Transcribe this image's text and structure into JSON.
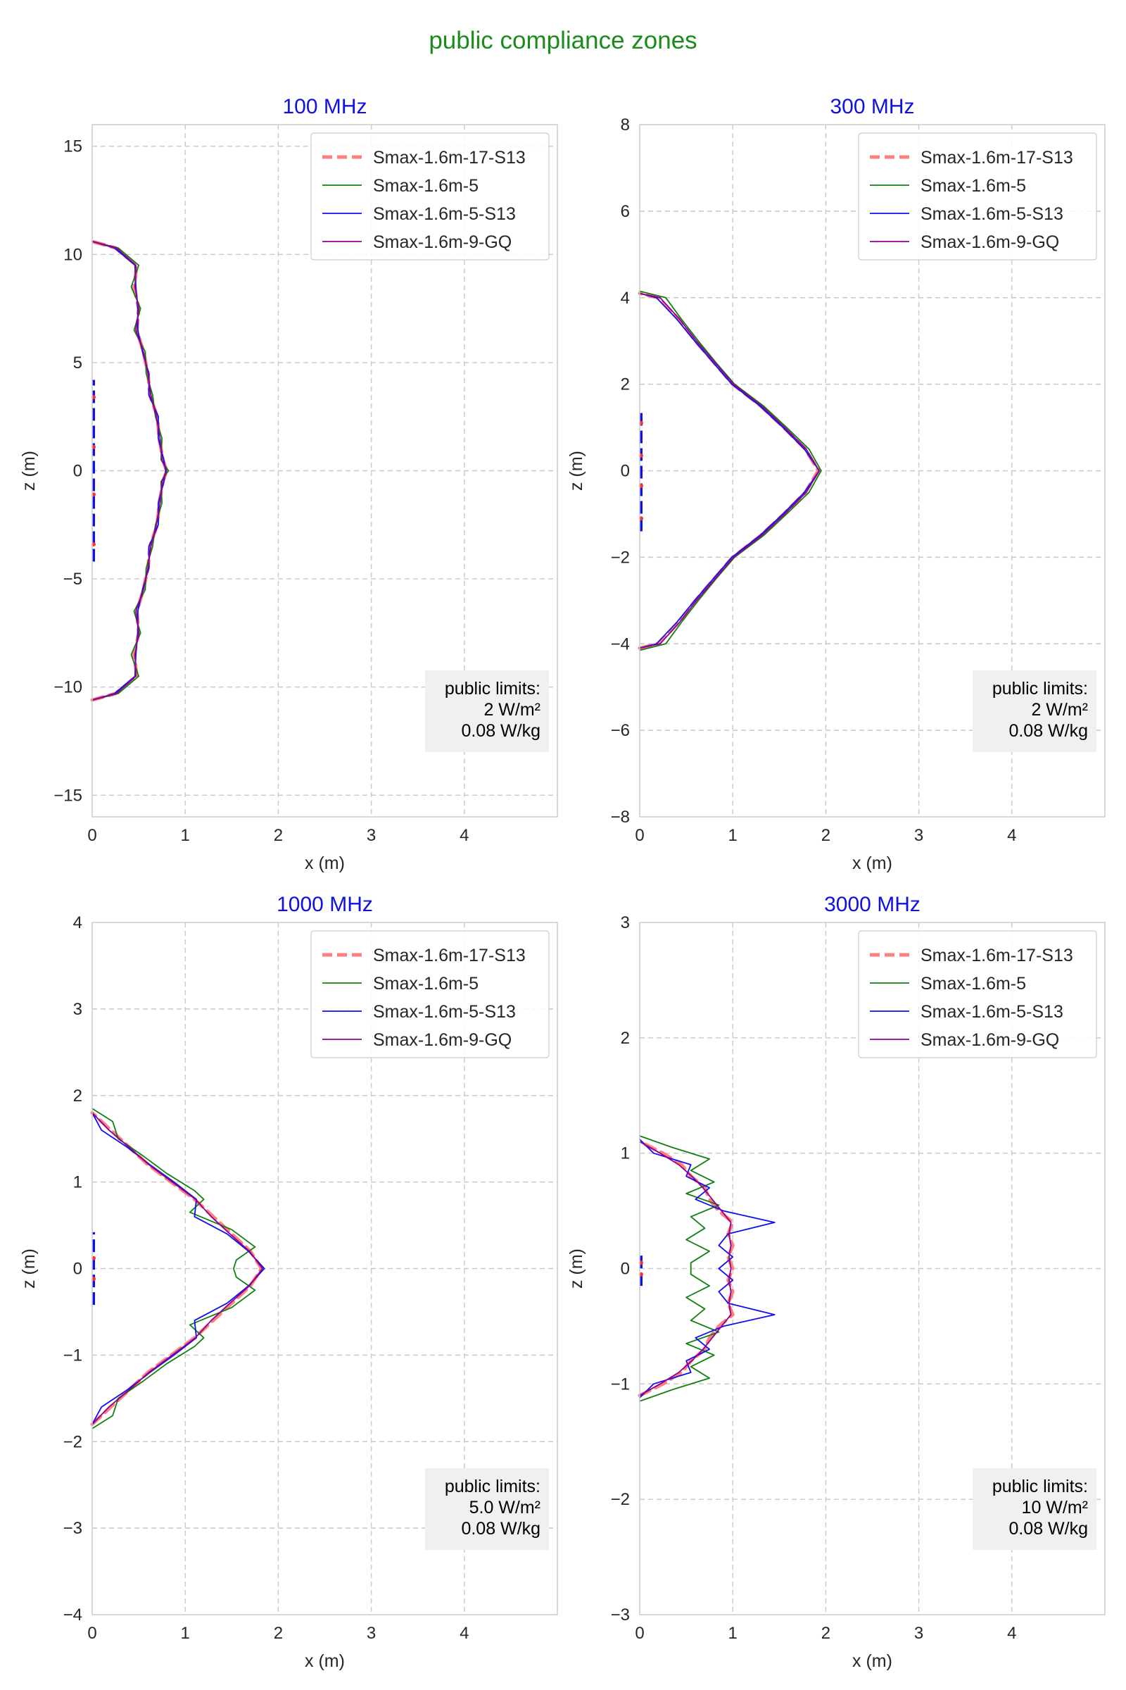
{
  "figure_title": "public compliance zones",
  "colors": {
    "title": "#1a8c1a",
    "panel_title": "#1010e0",
    "Smax-1.6m-17-S13": "#ff7777",
    "Smax-1.6m-5": "#108010",
    "Smax-1.6m-5-S13": "#1010ee",
    "Smax-1.6m-9-GQ": "#900090",
    "antenna": "#1010ee",
    "antenna_feed": "#ff3030"
  },
  "chart_data": [
    {
      "type": "line",
      "title": "100 MHz",
      "xlabel": "x (m)",
      "ylabel": "z (m)",
      "xlim": [
        0,
        5
      ],
      "ylim": [
        -16,
        16
      ],
      "xticks": [
        0,
        1,
        2,
        3,
        4
      ],
      "yticks": [
        -15,
        -10,
        -5,
        0,
        5,
        10,
        15
      ],
      "grid": true,
      "legend_position": "upper-right",
      "legend": [
        "Smax-1.6m-17-S13",
        "Smax-1.6m-5",
        "Smax-1.6m-5-S13",
        "Smax-1.6m-9-GQ"
      ],
      "limits_box": {
        "position": "lower-right",
        "lines": [
          "public limits:",
          "2 W/m²",
          "0.08 W/kg"
        ]
      },
      "antenna": {
        "z_range": [
          -4.2,
          4.2
        ],
        "feed_z": [
          -3.4,
          -1.1,
          1.1,
          3.4
        ]
      },
      "series": [
        {
          "name": "Smax-1.6m-17-S13",
          "style": "dashed",
          "z": [
            -10.6,
            -10.3,
            -9.5,
            -8.5,
            -7.5,
            -6.5,
            -5.5,
            -4.5,
            -3.5,
            -2.5,
            -1.5,
            -0.5,
            0,
            0.5,
            1.5,
            2.5,
            3.5,
            4.5,
            5.5,
            6.5,
            7.5,
            8.5,
            9.5,
            10.3,
            10.6
          ],
          "x": [
            0.0,
            0.25,
            0.48,
            0.45,
            0.5,
            0.48,
            0.55,
            0.6,
            0.62,
            0.7,
            0.72,
            0.76,
            0.8,
            0.76,
            0.72,
            0.7,
            0.62,
            0.6,
            0.55,
            0.48,
            0.5,
            0.45,
            0.48,
            0.25,
            0.0
          ]
        },
        {
          "name": "Smax-1.6m-5",
          "style": "solid",
          "z": [
            -10.6,
            -10.3,
            -9.5,
            -8.5,
            -7.5,
            -6.5,
            -5.5,
            -4.5,
            -3.5,
            -2.5,
            -1.5,
            -0.5,
            0,
            0.5,
            1.5,
            2.5,
            3.5,
            4.5,
            5.5,
            6.5,
            7.5,
            8.5,
            9.5,
            10.3,
            10.6
          ],
          "x": [
            0.0,
            0.28,
            0.5,
            0.42,
            0.52,
            0.45,
            0.57,
            0.58,
            0.65,
            0.68,
            0.75,
            0.74,
            0.82,
            0.74,
            0.75,
            0.68,
            0.65,
            0.58,
            0.57,
            0.45,
            0.52,
            0.42,
            0.5,
            0.28,
            0.0
          ]
        },
        {
          "name": "Smax-1.6m-5-S13",
          "style": "solid",
          "z": [
            -10.6,
            -10.3,
            -9.5,
            -8.5,
            -7.5,
            -6.5,
            -5.5,
            -4.5,
            -3.5,
            -2.5,
            -1.5,
            -0.5,
            0,
            0.5,
            1.5,
            2.5,
            3.5,
            4.5,
            5.5,
            6.5,
            7.5,
            8.5,
            9.5,
            10.3,
            10.6
          ],
          "x": [
            0.0,
            0.24,
            0.46,
            0.47,
            0.49,
            0.49,
            0.54,
            0.61,
            0.61,
            0.71,
            0.71,
            0.77,
            0.79,
            0.77,
            0.71,
            0.71,
            0.61,
            0.61,
            0.54,
            0.49,
            0.49,
            0.47,
            0.46,
            0.24,
            0.0
          ]
        },
        {
          "name": "Smax-1.6m-9-GQ",
          "style": "solid",
          "z": [
            -10.6,
            -10.3,
            -9.5,
            -8.5,
            -7.5,
            -6.5,
            -5.5,
            -4.5,
            -3.5,
            -2.5,
            -1.5,
            -0.5,
            0,
            0.5,
            1.5,
            2.5,
            3.5,
            4.5,
            5.5,
            6.5,
            7.5,
            8.5,
            9.5,
            10.3,
            10.6
          ],
          "x": [
            0.0,
            0.26,
            0.47,
            0.46,
            0.5,
            0.47,
            0.55,
            0.6,
            0.63,
            0.69,
            0.73,
            0.75,
            0.8,
            0.75,
            0.73,
            0.69,
            0.63,
            0.6,
            0.55,
            0.47,
            0.5,
            0.46,
            0.47,
            0.26,
            0.0
          ]
        }
      ]
    },
    {
      "type": "line",
      "title": "300 MHz",
      "xlabel": "x (m)",
      "ylabel": "z (m)",
      "xlim": [
        0,
        5
      ],
      "ylim": [
        -8,
        8
      ],
      "xticks": [
        0,
        1,
        2,
        3,
        4
      ],
      "yticks": [
        -8,
        -6,
        -4,
        -2,
        0,
        2,
        4,
        6,
        8
      ],
      "grid": true,
      "legend_position": "upper-right",
      "legend": [
        "Smax-1.6m-17-S13",
        "Smax-1.6m-5",
        "Smax-1.6m-5-S13",
        "Smax-1.6m-9-GQ"
      ],
      "limits_box": {
        "position": "lower-right",
        "lines": [
          "public limits:",
          "2 W/m²",
          "0.08 W/kg"
        ]
      },
      "antenna": {
        "z_range": [
          -1.4,
          1.4
        ],
        "feed_z": [
          -1.1,
          -0.35,
          0.35,
          1.1
        ]
      },
      "series": [
        {
          "name": "Smax-1.6m-17-S13",
          "style": "dashed",
          "z": [
            -4.1,
            -4.0,
            -3.5,
            -3.0,
            -2.5,
            -2.0,
            -1.5,
            -1.0,
            -0.5,
            0,
            0.5,
            1.0,
            1.5,
            2.0,
            2.5,
            3.0,
            3.5,
            4.0,
            4.1
          ],
          "x": [
            0.0,
            0.2,
            0.42,
            0.6,
            0.8,
            1.0,
            1.3,
            1.55,
            1.78,
            1.92,
            1.78,
            1.55,
            1.3,
            1.0,
            0.8,
            0.6,
            0.42,
            0.2,
            0.0
          ]
        },
        {
          "name": "Smax-1.6m-5",
          "style": "solid",
          "z": [
            -4.15,
            -4.0,
            -3.5,
            -3.0,
            -2.5,
            -2.0,
            -1.5,
            -1.0,
            -0.5,
            0,
            0.5,
            1.0,
            1.5,
            2.0,
            2.5,
            3.0,
            3.5,
            4.0,
            4.15
          ],
          "x": [
            0.0,
            0.28,
            0.45,
            0.63,
            0.82,
            1.02,
            1.33,
            1.58,
            1.82,
            1.95,
            1.82,
            1.58,
            1.33,
            1.02,
            0.82,
            0.63,
            0.45,
            0.28,
            0.0
          ]
        },
        {
          "name": "Smax-1.6m-5-S13",
          "style": "solid",
          "z": [
            -4.1,
            -4.0,
            -3.5,
            -3.0,
            -2.5,
            -2.0,
            -1.5,
            -1.0,
            -0.5,
            0,
            0.5,
            1.0,
            1.5,
            2.0,
            2.5,
            3.0,
            3.5,
            4.0,
            4.1
          ],
          "x": [
            0.0,
            0.18,
            0.4,
            0.59,
            0.79,
            0.99,
            1.29,
            1.54,
            1.77,
            1.93,
            1.77,
            1.54,
            1.29,
            0.99,
            0.79,
            0.59,
            0.4,
            0.18,
            0.0
          ]
        },
        {
          "name": "Smax-1.6m-9-GQ",
          "style": "solid",
          "z": [
            -4.1,
            -4.0,
            -3.5,
            -3.0,
            -2.5,
            -2.0,
            -1.5,
            -1.0,
            -0.5,
            0,
            0.5,
            1.0,
            1.5,
            2.0,
            2.5,
            3.0,
            3.5,
            4.0,
            4.1
          ],
          "x": [
            0.0,
            0.22,
            0.43,
            0.61,
            0.81,
            1.01,
            1.31,
            1.56,
            1.79,
            1.93,
            1.79,
            1.56,
            1.31,
            1.01,
            0.81,
            0.61,
            0.43,
            0.22,
            0.0
          ]
        }
      ]
    },
    {
      "type": "line",
      "title": "1000 MHz",
      "xlabel": "x (m)",
      "ylabel": "z (m)",
      "xlim": [
        0,
        5
      ],
      "ylim": [
        -4,
        4
      ],
      "xticks": [
        0,
        1,
        2,
        3,
        4
      ],
      "yticks": [
        -4,
        -3,
        -2,
        -1,
        0,
        1,
        2,
        3,
        4
      ],
      "grid": true,
      "legend_position": "upper-right",
      "legend": [
        "Smax-1.6m-17-S13",
        "Smax-1.6m-5",
        "Smax-1.6m-5-S13",
        "Smax-1.6m-9-GQ"
      ],
      "limits_box": {
        "position": "lower-right",
        "lines": [
          "public limits:",
          "5.0 W/m²",
          "0.08 W/kg"
        ]
      },
      "antenna": {
        "z_range": [
          -0.42,
          0.42
        ],
        "feed_z": [
          -0.12,
          0.12
        ]
      },
      "series": [
        {
          "name": "Smax-1.6m-17-S13",
          "style": "dashed",
          "z": [
            -1.8,
            -1.6,
            -1.4,
            -1.2,
            -1.0,
            -0.8,
            -0.6,
            -0.4,
            -0.2,
            0,
            0.2,
            0.4,
            0.6,
            0.8,
            1.0,
            1.2,
            1.4,
            1.6,
            1.8
          ],
          "x": [
            0.0,
            0.2,
            0.4,
            0.6,
            0.85,
            1.1,
            1.3,
            1.5,
            1.7,
            1.82,
            1.7,
            1.5,
            1.3,
            1.1,
            0.85,
            0.6,
            0.4,
            0.2,
            0.0
          ]
        },
        {
          "name": "Smax-1.6m-5",
          "style": "solid",
          "z": [
            -1.85,
            -1.7,
            -1.5,
            -1.3,
            -1.1,
            -0.9,
            -0.8,
            -0.65,
            -0.45,
            -0.25,
            -0.1,
            0,
            0.1,
            0.25,
            0.45,
            0.65,
            0.8,
            0.9,
            1.1,
            1.3,
            1.5,
            1.7,
            1.85
          ],
          "x": [
            0.0,
            0.22,
            0.28,
            0.55,
            0.8,
            1.1,
            1.2,
            1.05,
            1.5,
            1.75,
            1.55,
            1.52,
            1.55,
            1.75,
            1.5,
            1.05,
            1.2,
            1.1,
            0.8,
            0.55,
            0.28,
            0.22,
            0.0
          ]
        },
        {
          "name": "Smax-1.6m-5-S13",
          "style": "solid",
          "z": [
            -1.8,
            -1.6,
            -1.4,
            -1.2,
            -1.0,
            -0.8,
            -0.6,
            -0.4,
            -0.2,
            0,
            0.2,
            0.4,
            0.6,
            0.8,
            1.0,
            1.2,
            1.4,
            1.6,
            1.8
          ],
          "x": [
            0.0,
            0.1,
            0.38,
            0.62,
            0.88,
            1.12,
            1.1,
            1.45,
            1.68,
            1.85,
            1.68,
            1.45,
            1.1,
            1.12,
            0.88,
            0.62,
            0.38,
            0.1,
            0.0
          ]
        },
        {
          "name": "Smax-1.6m-9-GQ",
          "style": "solid",
          "z": [
            -1.8,
            -1.6,
            -1.4,
            -1.2,
            -1.0,
            -0.8,
            -0.6,
            -0.4,
            -0.2,
            0,
            0.2,
            0.4,
            0.6,
            0.8,
            1.0,
            1.2,
            1.4,
            1.6,
            1.8
          ],
          "x": [
            0.0,
            0.18,
            0.4,
            0.61,
            0.86,
            1.11,
            1.28,
            1.48,
            1.69,
            1.83,
            1.69,
            1.48,
            1.28,
            1.11,
            0.86,
            0.61,
            0.4,
            0.18,
            0.0
          ]
        }
      ]
    },
    {
      "type": "line",
      "title": "3000 MHz",
      "xlabel": "x (m)",
      "ylabel": "z (m)",
      "xlim": [
        0,
        5
      ],
      "ylim": [
        -3,
        3
      ],
      "xticks": [
        0,
        1,
        2,
        3,
        4
      ],
      "yticks": [
        -3,
        -2,
        -1,
        0,
        1,
        2,
        3
      ],
      "grid": true,
      "legend_position": "upper-right",
      "legend": [
        "Smax-1.6m-17-S13",
        "Smax-1.6m-5",
        "Smax-1.6m-5-S13",
        "Smax-1.6m-9-GQ"
      ],
      "limits_box": {
        "position": "lower-right",
        "lines": [
          "public limits:",
          "10 W/m²",
          "0.08 W/kg"
        ]
      },
      "antenna": {
        "z_range": [
          -0.15,
          0.15
        ],
        "feed_z": [
          -0.05,
          0.05
        ]
      },
      "series": [
        {
          "name": "Smax-1.6m-17-S13",
          "style": "dashed",
          "z": [
            -1.1,
            -1.0,
            -0.9,
            -0.8,
            -0.7,
            -0.6,
            -0.5,
            -0.4,
            -0.3,
            -0.2,
            -0.1,
            0,
            0.1,
            0.2,
            0.3,
            0.4,
            0.5,
            0.6,
            0.7,
            0.8,
            0.9,
            1.0,
            1.1
          ],
          "x": [
            0.0,
            0.25,
            0.45,
            0.55,
            0.7,
            0.75,
            0.85,
            1.0,
            0.95,
            1.0,
            0.95,
            1.0,
            0.95,
            1.0,
            0.95,
            1.0,
            0.85,
            0.75,
            0.7,
            0.55,
            0.45,
            0.25,
            0.0
          ]
        },
        {
          "name": "Smax-1.6m-5",
          "style": "solid",
          "z": [
            -1.15,
            -1.05,
            -0.95,
            -0.85,
            -0.75,
            -0.65,
            -0.55,
            -0.45,
            -0.35,
            -0.25,
            -0.15,
            -0.05,
            0.05,
            0.15,
            0.25,
            0.35,
            0.45,
            0.55,
            0.65,
            0.75,
            0.85,
            0.95,
            1.05,
            1.15
          ],
          "x": [
            0.0,
            0.35,
            0.75,
            0.55,
            0.8,
            0.5,
            0.85,
            0.55,
            0.7,
            0.5,
            0.75,
            0.55,
            0.55,
            0.75,
            0.5,
            0.7,
            0.55,
            0.85,
            0.5,
            0.8,
            0.55,
            0.75,
            0.35,
            0.0
          ]
        },
        {
          "name": "Smax-1.6m-5-S13",
          "style": "solid",
          "z": [
            -1.12,
            -1.0,
            -0.9,
            -0.8,
            -0.7,
            -0.6,
            -0.5,
            -0.4,
            -0.3,
            -0.2,
            -0.1,
            0,
            0.1,
            0.2,
            0.3,
            0.4,
            0.5,
            0.6,
            0.7,
            0.8,
            0.9,
            1.0,
            1.12
          ],
          "x": [
            0.0,
            0.15,
            0.55,
            0.5,
            0.75,
            0.6,
            0.9,
            1.45,
            0.95,
            0.85,
            1.0,
            0.85,
            1.0,
            0.85,
            0.95,
            1.45,
            0.9,
            0.6,
            0.75,
            0.5,
            0.55,
            0.15,
            0.0
          ]
        },
        {
          "name": "Smax-1.6m-9-GQ",
          "style": "solid",
          "z": [
            -1.1,
            -1.0,
            -0.9,
            -0.8,
            -0.7,
            -0.6,
            -0.5,
            -0.4,
            -0.3,
            -0.2,
            -0.1,
            0,
            0.1,
            0.2,
            0.3,
            0.4,
            0.5,
            0.6,
            0.7,
            0.8,
            0.9,
            1.0,
            1.1
          ],
          "x": [
            0.0,
            0.22,
            0.42,
            0.56,
            0.68,
            0.78,
            0.88,
            0.98,
            0.96,
            0.98,
            0.96,
            0.98,
            0.96,
            0.98,
            0.96,
            0.98,
            0.88,
            0.78,
            0.68,
            0.56,
            0.42,
            0.22,
            0.0
          ]
        }
      ]
    }
  ]
}
